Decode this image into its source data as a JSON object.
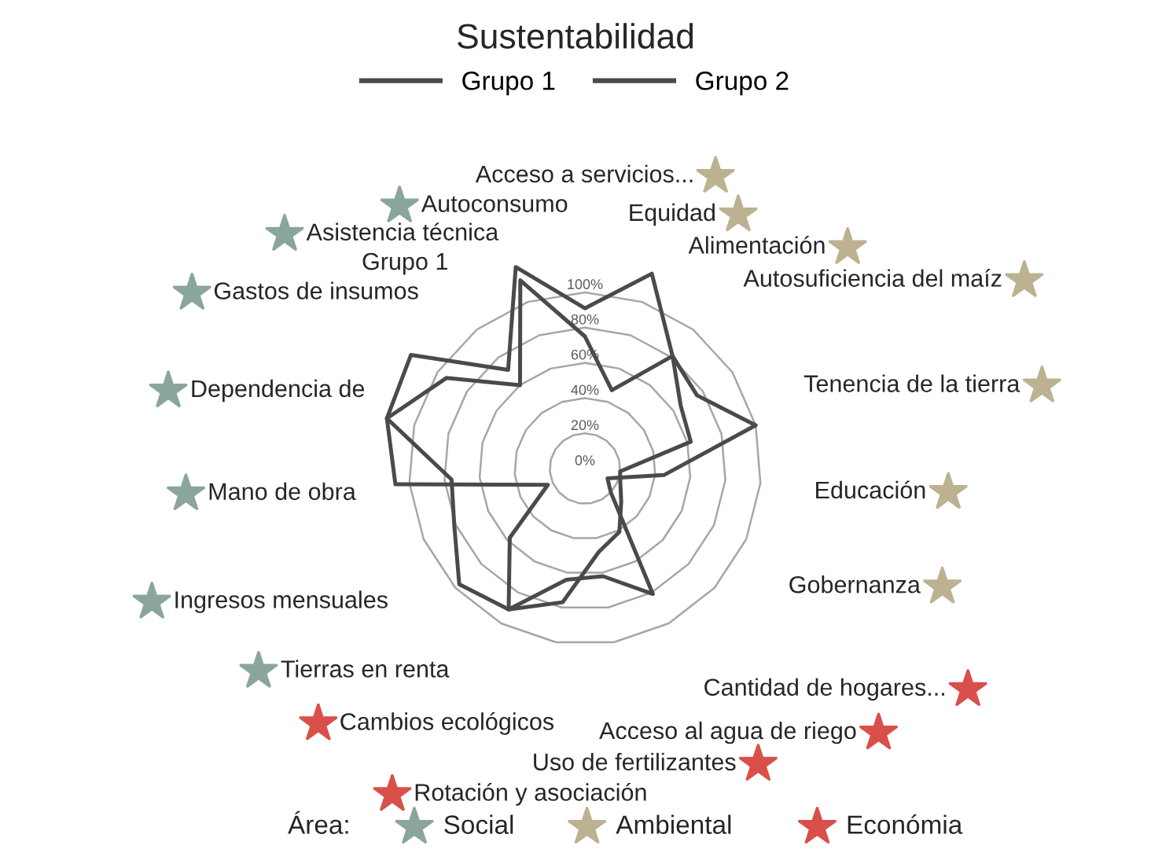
{
  "chart_data": {
    "type": "radar",
    "title": "Sustentabilidad",
    "categories": [
      "Acceso a servicios...",
      "Equidad",
      "Alimentación",
      "Autosuficiencia del maíz",
      "Tenencia de la tierra",
      "Educación",
      "Gobernanza",
      "Cantidad de hogares...",
      "Acceso al agua de riego",
      "Uso de fertilizantes",
      "Rotación y asociación",
      "Cambios ecológicos",
      "Tierras en renta",
      "Ingresos mensuales",
      "Mano de obra",
      "Dependencia de",
      "Gastos de insumos",
      "Asistencia técnica",
      "Autoconsumo"
    ],
    "colors": [
      "#bcb291",
      "#bcb291",
      "#bcb291",
      "#bcb291",
      "#bcb291",
      "#bcb291",
      "#bcb291",
      "#d9504a",
      "#d9504a",
      "#d9504a",
      "#d9504a",
      "#d9504a",
      "#8aa69a",
      "#8aa69a",
      "#8aa69a",
      "#8aa69a",
      "#8aa69a",
      "#8aa69a",
      "#8aa69a"
    ],
    "series": [
      {
        "name": "Grupo 1",
        "color": "#4a4a4a",
        "values": [
          91,
          117,
          81,
          76,
          100,
          45,
          14,
          20,
          81,
          62,
          64,
          91,
          58,
          23,
          108,
          116,
          118,
          71,
          121
        ]
      },
      {
        "name": "Grupo 2",
        "color": "#4a4a4a",
        "values": [
          75,
          47,
          81,
          65,
          62,
          20,
          22,
          28,
          41,
          48,
          77,
          91,
          97,
          81,
          76,
          116,
          94,
          60,
          113
        ]
      }
    ],
    "ylim": [
      0,
      125
    ],
    "yticks": [
      {
        "value": 0,
        "label": "0%"
      },
      {
        "value": 20,
        "label": "20%"
      },
      {
        "value": 40,
        "label": "40%"
      },
      {
        "value": 60,
        "label": "60%"
      },
      {
        "value": 80,
        "label": "80%"
      },
      {
        "value": 100,
        "label": "100%"
      }
    ],
    "grid": true,
    "legend": "top",
    "marker": "none",
    "line_style": "solid",
    "annotations": [
      "Grupo 1",
      "Área:",
      "Social",
      "Ambiental",
      "Económia"
    ]
  }
}
